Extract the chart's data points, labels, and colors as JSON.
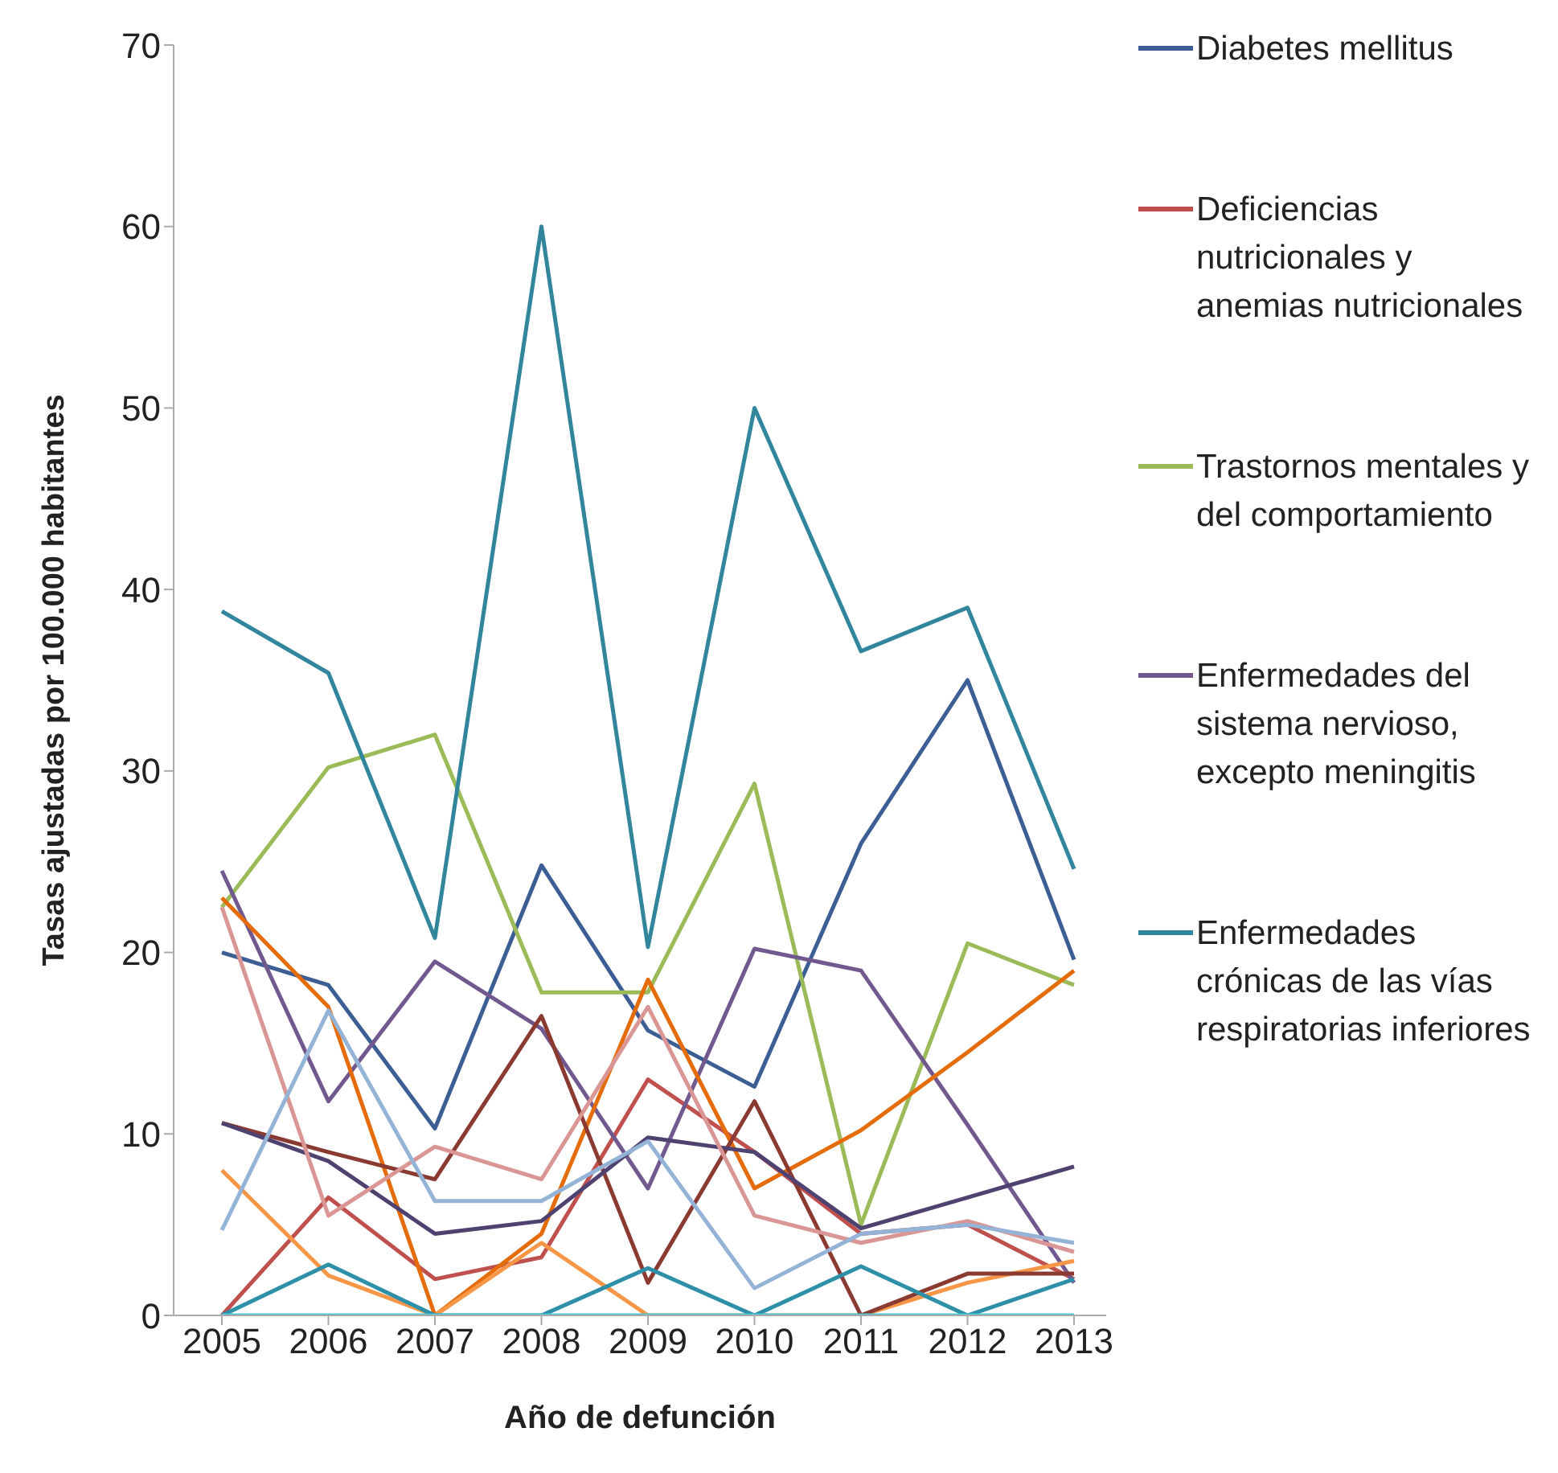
{
  "chart_data": {
    "type": "line",
    "xlabel": "Año de defunción",
    "ylabel": "Tasas ajustadas por 100.000 habitantes",
    "categories": [
      "2005",
      "2006",
      "2007",
      "2008",
      "2009",
      "2010",
      "2011",
      "2012",
      "2013"
    ],
    "ylim": [
      0,
      70
    ],
    "yticks": [
      0,
      10,
      20,
      30,
      40,
      50,
      60,
      70
    ],
    "grid": false,
    "legend": "right",
    "marker": "none",
    "line_style": "solid",
    "series": [
      {
        "name": "Diabetes mellitus",
        "color": "#3c5e94",
        "values": [
          20,
          18.2,
          10.3,
          24.8,
          15.7,
          12.6,
          26,
          35,
          19.6
        ]
      },
      {
        "name": "Deficiencias nutricionales y anemias nutricionales",
        "color": "#c0504d",
        "values": [
          0,
          6.5,
          2,
          3.2,
          13,
          9,
          4.5,
          5,
          2
        ]
      },
      {
        "name": "Trastornos mentales y del comportamiento",
        "color": "#9bbb59",
        "values": [
          22.5,
          30.2,
          32,
          17.8,
          17.8,
          29.3,
          5,
          20.5,
          18.2
        ]
      },
      {
        "name": "Enfermedades del sistema nervioso, excepto meningitis",
        "color": "#71588f",
        "values": [
          24.5,
          11.8,
          19.5,
          15.8,
          7,
          20.2,
          19,
          10.5,
          1.8
        ]
      },
      {
        "name": "Enfermedades crónicas de las vías respiratorias inferiores",
        "color": "#31859c",
        "values": [
          38.8,
          35.4,
          20.8,
          60,
          20.3,
          50,
          36.6,
          39,
          24.6
        ]
      },
      {
        "color": "#e46c0a",
        "values": [
          23,
          17,
          0,
          4.5,
          18.5,
          7,
          10.2,
          14.5,
          19
        ]
      },
      {
        "color": "#f79646",
        "values": [
          8,
          2.2,
          0,
          4,
          0,
          0,
          0,
          1.8,
          3
        ]
      },
      {
        "color": "#8b3a32",
        "values": [
          10.6,
          9,
          7.5,
          16.5,
          1.8,
          11.8,
          0,
          2.3,
          2.3
        ]
      },
      {
        "color": "#4f4270",
        "values": [
          10.6,
          8.5,
          4.5,
          5.2,
          9.8,
          9,
          4.8,
          6.5,
          8.2
        ]
      },
      {
        "color": "#d99694",
        "values": [
          22.5,
          5.5,
          9.3,
          7.5,
          17,
          5.5,
          4,
          5.2,
          3.5
        ]
      },
      {
        "color": "#95b3d7",
        "values": [
          4.7,
          16.8,
          6.3,
          6.3,
          9.6,
          1.5,
          4.5,
          5,
          4
        ]
      },
      {
        "color": "#2e8fa8",
        "values": [
          0,
          2.8,
          0,
          0,
          2.6,
          0,
          2.7,
          0,
          2
        ]
      },
      {
        "color": "#4bc6d6",
        "values": [
          0,
          0,
          0,
          0,
          0,
          0,
          0,
          0,
          0
        ]
      }
    ]
  }
}
